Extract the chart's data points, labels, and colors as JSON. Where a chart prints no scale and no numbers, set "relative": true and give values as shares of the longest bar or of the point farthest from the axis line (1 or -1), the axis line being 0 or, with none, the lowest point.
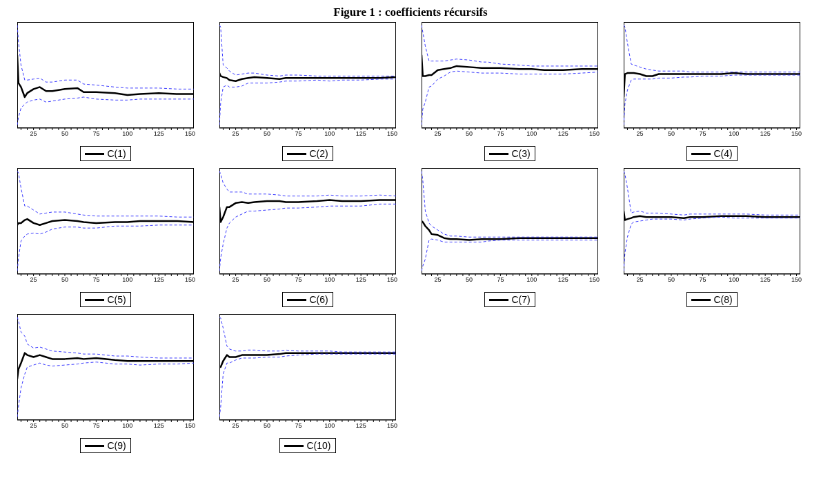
{
  "chart_data": [
    {
      "type": "line",
      "x": [
        12,
        13,
        15,
        18,
        20,
        25,
        30,
        35,
        40,
        50,
        60,
        65,
        75,
        90,
        100,
        110,
        125,
        140,
        153
      ],
      "xlim": [
        12,
        153
      ],
      "xticks": [
        {
          "value": 15,
          "label": null
        },
        {
          "value": 20,
          "label": null
        },
        25,
        {
          "value": 30,
          "label": null
        },
        {
          "value": 35,
          "label": null
        },
        {
          "value": 40,
          "label": null
        },
        {
          "value": 45,
          "label": null
        },
        50,
        {
          "value": 55,
          "label": null
        },
        {
          "value": 60,
          "label": null
        },
        {
          "value": 65,
          "label": null
        },
        {
          "value": 70,
          "label": null
        },
        75,
        {
          "value": 80,
          "label": null
        },
        {
          "value": 85,
          "label": null
        },
        {
          "value": 90,
          "label": null
        },
        {
          "value": 95,
          "label": null
        },
        100,
        {
          "value": 105,
          "label": null
        },
        {
          "value": 110,
          "label": null
        },
        {
          "value": 115,
          "label": null
        },
        {
          "value": 120,
          "label": null
        },
        125,
        {
          "value": 130,
          "label": null
        },
        {
          "value": 135,
          "label": null
        },
        {
          "value": 140,
          "label": null
        },
        {
          "value": 145,
          "label": null
        },
        150
      ],
      "relative": true,
      "legend": "bottom",
      "series": [
        {
          "name": "C(1)",
          "color": "#000000",
          "line_style": "solid",
          "values": [
            0.7,
            0.42,
            0.38,
            0.28,
            0.32,
            0.36,
            0.38,
            0.34,
            0.34,
            0.36,
            0.37,
            0.33,
            0.33,
            0.32,
            0.3,
            0.31,
            0.32,
            0.31,
            0.31
          ]
        },
        {
          "color": "#3a3aff",
          "line_style": "dashed",
          "values": [
            1.0,
            0.83,
            0.6,
            0.45,
            0.45,
            0.46,
            0.47,
            0.43,
            0.43,
            0.45,
            0.45,
            0.41,
            0.4,
            0.38,
            0.37,
            0.37,
            0.37,
            0.36,
            0.36
          ]
        },
        {
          "color": "#3a3aff",
          "line_style": "dashed",
          "values": [
            0,
            0.08,
            0.17,
            0.21,
            0.23,
            0.25,
            0.26,
            0.23,
            0.24,
            0.26,
            0.27,
            0.28,
            0.26,
            0.25,
            0.25,
            0.26,
            0.26,
            0.26,
            0.26
          ]
        }
      ]
    },
    {
      "type": "line",
      "x": [
        12,
        13,
        15,
        18,
        20,
        25,
        30,
        35,
        40,
        50,
        60,
        65,
        75,
        90,
        100,
        110,
        125,
        140,
        153
      ],
      "xlim": [
        12,
        153
      ],
      "xticks": [
        {
          "value": 15,
          "label": null
        },
        {
          "value": 20,
          "label": null
        },
        25,
        {
          "value": 30,
          "label": null
        },
        {
          "value": 35,
          "label": null
        },
        {
          "value": 40,
          "label": null
        },
        {
          "value": 45,
          "label": null
        },
        50,
        {
          "value": 55,
          "label": null
        },
        {
          "value": 60,
          "label": null
        },
        {
          "value": 65,
          "label": null
        },
        {
          "value": 70,
          "label": null
        },
        75,
        {
          "value": 80,
          "label": null
        },
        {
          "value": 85,
          "label": null
        },
        {
          "value": 90,
          "label": null
        },
        {
          "value": 95,
          "label": null
        },
        100,
        {
          "value": 105,
          "label": null
        },
        {
          "value": 110,
          "label": null
        },
        {
          "value": 115,
          "label": null
        },
        {
          "value": 120,
          "label": null
        },
        125,
        {
          "value": 130,
          "label": null
        },
        {
          "value": 135,
          "label": null
        },
        {
          "value": 140,
          "label": null
        },
        {
          "value": 145,
          "label": null
        },
        150
      ],
      "relative": true,
      "legend": "bottom",
      "series": [
        {
          "name": "C(2)",
          "color": "#000000",
          "line_style": "solid",
          "values": [
            0.52,
            0.49,
            0.48,
            0.47,
            0.45,
            0.44,
            0.46,
            0.47,
            0.48,
            0.47,
            0.46,
            0.47,
            0.47,
            0.47,
            0.47,
            0.47,
            0.47,
            0.47,
            0.48
          ]
        },
        {
          "color": "#3a3aff",
          "line_style": "dashed",
          "values": [
            1.0,
            0.98,
            0.6,
            0.57,
            0.54,
            0.5,
            0.51,
            0.52,
            0.52,
            0.5,
            0.49,
            0.5,
            0.5,
            0.49,
            0.49,
            0.49,
            0.49,
            0.49,
            0.49
          ]
        },
        {
          "color": "#3a3aff",
          "line_style": "dashed",
          "values": [
            0,
            0.22,
            0.38,
            0.4,
            0.38,
            0.38,
            0.39,
            0.42,
            0.42,
            0.42,
            0.43,
            0.44,
            0.44,
            0.45,
            0.44,
            0.45,
            0.45,
            0.46,
            0.46
          ]
        }
      ]
    },
    {
      "type": "line",
      "x": [
        12,
        13,
        15,
        18,
        20,
        25,
        30,
        35,
        40,
        50,
        60,
        65,
        75,
        90,
        100,
        110,
        125,
        140,
        153
      ],
      "xlim": [
        12,
        153
      ],
      "xticks": [
        {
          "value": 15,
          "label": null
        },
        {
          "value": 20,
          "label": null
        },
        25,
        {
          "value": 30,
          "label": null
        },
        {
          "value": 35,
          "label": null
        },
        {
          "value": 40,
          "label": null
        },
        {
          "value": 45,
          "label": null
        },
        50,
        {
          "value": 55,
          "label": null
        },
        {
          "value": 60,
          "label": null
        },
        {
          "value": 65,
          "label": null
        },
        {
          "value": 70,
          "label": null
        },
        75,
        {
          "value": 80,
          "label": null
        },
        {
          "value": 85,
          "label": null
        },
        {
          "value": 90,
          "label": null
        },
        {
          "value": 95,
          "label": null
        },
        100,
        {
          "value": 105,
          "label": null
        },
        {
          "value": 110,
          "label": null
        },
        {
          "value": 115,
          "label": null
        },
        {
          "value": 120,
          "label": null
        },
        125,
        {
          "value": 130,
          "label": null
        },
        {
          "value": 135,
          "label": null
        },
        {
          "value": 140,
          "label": null
        },
        {
          "value": 145,
          "label": null
        },
        150
      ],
      "relative": true,
      "legend": "bottom",
      "title": "Figure 1 : coefficients récursifs",
      "series": [
        {
          "name": "C(3)",
          "color": "#000000",
          "line_style": "solid",
          "values": [
            0.7,
            0.49,
            0.49,
            0.5,
            0.5,
            0.55,
            0.56,
            0.57,
            0.59,
            0.58,
            0.57,
            0.57,
            0.57,
            0.56,
            0.56,
            0.55,
            0.55,
            0.56,
            0.56
          ]
        },
        {
          "color": "#3a3aff",
          "line_style": "dashed",
          "values": [
            1.0,
            0.93,
            0.79,
            0.64,
            0.64,
            0.64,
            0.64,
            0.65,
            0.66,
            0.65,
            0.63,
            0.63,
            0.61,
            0.6,
            0.59,
            0.59,
            0.59,
            0.59,
            0.59
          ]
        },
        {
          "color": "#3a3aff",
          "line_style": "dashed",
          "values": [
            0,
            0.16,
            0.23,
            0.38,
            0.39,
            0.46,
            0.49,
            0.53,
            0.54,
            0.53,
            0.52,
            0.52,
            0.52,
            0.51,
            0.51,
            0.51,
            0.51,
            0.52,
            0.53
          ]
        }
      ]
    },
    {
      "type": "line",
      "x": [
        12,
        13,
        15,
        18,
        20,
        25,
        30,
        35,
        40,
        50,
        60,
        65,
        75,
        90,
        100,
        110,
        125,
        140,
        153
      ],
      "xlim": [
        12,
        153
      ],
      "xticks": [
        {
          "value": 15,
          "label": null
        },
        {
          "value": 20,
          "label": null
        },
        25,
        {
          "value": 30,
          "label": null
        },
        {
          "value": 35,
          "label": null
        },
        {
          "value": 40,
          "label": null
        },
        {
          "value": 45,
          "label": null
        },
        50,
        {
          "value": 55,
          "label": null
        },
        {
          "value": 60,
          "label": null
        },
        {
          "value": 65,
          "label": null
        },
        {
          "value": 70,
          "label": null
        },
        75,
        {
          "value": 80,
          "label": null
        },
        {
          "value": 85,
          "label": null
        },
        {
          "value": 90,
          "label": null
        },
        {
          "value": 95,
          "label": null
        },
        100,
        {
          "value": 105,
          "label": null
        },
        {
          "value": 110,
          "label": null
        },
        {
          "value": 115,
          "label": null
        },
        {
          "value": 120,
          "label": null
        },
        125,
        {
          "value": 130,
          "label": null
        },
        {
          "value": 135,
          "label": null
        },
        {
          "value": 140,
          "label": null
        },
        {
          "value": 145,
          "label": null
        },
        150
      ],
      "relative": true,
      "legend": "bottom",
      "series": [
        {
          "name": "C(4)",
          "color": "#000000",
          "line_style": "solid",
          "values": [
            0.28,
            0.51,
            0.52,
            0.52,
            0.52,
            0.51,
            0.49,
            0.49,
            0.51,
            0.51,
            0.51,
            0.51,
            0.51,
            0.51,
            0.52,
            0.51,
            0.51,
            0.51,
            0.51
          ]
        },
        {
          "color": "#3a3aff",
          "line_style": "dashed",
          "values": [
            1.0,
            0.98,
            0.82,
            0.61,
            0.6,
            0.58,
            0.56,
            0.55,
            0.54,
            0.54,
            0.54,
            0.53,
            0.53,
            0.53,
            0.53,
            0.53,
            0.53,
            0.53,
            0.53
          ]
        },
        {
          "color": "#3a3aff",
          "line_style": "dashed",
          "values": [
            0,
            0.21,
            0.35,
            0.45,
            0.46,
            0.46,
            0.46,
            0.46,
            0.47,
            0.47,
            0.48,
            0.48,
            0.49,
            0.49,
            0.5,
            0.5,
            0.5,
            0.5,
            0.5
          ]
        }
      ]
    },
    {
      "type": "line",
      "x": [
        12,
        13,
        15,
        18,
        20,
        25,
        30,
        35,
        40,
        50,
        60,
        65,
        75,
        90,
        100,
        110,
        125,
        140,
        153
      ],
      "xlim": [
        12,
        153
      ],
      "xticks": [
        {
          "value": 15,
          "label": null
        },
        {
          "value": 20,
          "label": null
        },
        25,
        {
          "value": 30,
          "label": null
        },
        {
          "value": 35,
          "label": null
        },
        {
          "value": 40,
          "label": null
        },
        {
          "value": 45,
          "label": null
        },
        50,
        {
          "value": 55,
          "label": null
        },
        {
          "value": 60,
          "label": null
        },
        {
          "value": 65,
          "label": null
        },
        {
          "value": 70,
          "label": null
        },
        75,
        {
          "value": 80,
          "label": null
        },
        {
          "value": 85,
          "label": null
        },
        {
          "value": 90,
          "label": null
        },
        {
          "value": 95,
          "label": null
        },
        100,
        {
          "value": 105,
          "label": null
        },
        {
          "value": 110,
          "label": null
        },
        {
          "value": 115,
          "label": null
        },
        {
          "value": 120,
          "label": null
        },
        125,
        {
          "value": 130,
          "label": null
        },
        {
          "value": 135,
          "label": null
        },
        {
          "value": 140,
          "label": null
        },
        {
          "value": 145,
          "label": null
        },
        150
      ],
      "relative": true,
      "legend": "bottom",
      "series": [
        {
          "name": "C(5)",
          "color": "#000000",
          "line_style": "solid",
          "values": [
            0.46,
            0.48,
            0.48,
            0.51,
            0.52,
            0.48,
            0.46,
            0.48,
            0.5,
            0.51,
            0.5,
            0.49,
            0.48,
            0.49,
            0.49,
            0.5,
            0.5,
            0.5,
            0.49
          ]
        },
        {
          "color": "#3a3aff",
          "line_style": "dashed",
          "values": [
            1.0,
            0.98,
            0.83,
            0.65,
            0.65,
            0.61,
            0.57,
            0.58,
            0.59,
            0.59,
            0.57,
            0.56,
            0.55,
            0.55,
            0.55,
            0.55,
            0.55,
            0.54,
            0.54
          ]
        },
        {
          "color": "#3a3aff",
          "line_style": "dashed",
          "values": [
            0,
            0.13,
            0.3,
            0.35,
            0.37,
            0.38,
            0.37,
            0.39,
            0.42,
            0.44,
            0.44,
            0.43,
            0.43,
            0.45,
            0.45,
            0.45,
            0.46,
            0.46,
            0.46
          ]
        }
      ]
    },
    {
      "type": "line",
      "x": [
        12,
        13,
        15,
        18,
        20,
        25,
        30,
        35,
        40,
        50,
        60,
        65,
        75,
        90,
        100,
        110,
        125,
        140,
        153
      ],
      "xlim": [
        12,
        153
      ],
      "xticks": [
        {
          "value": 15,
          "label": null
        },
        {
          "value": 20,
          "label": null
        },
        25,
        {
          "value": 30,
          "label": null
        },
        {
          "value": 35,
          "label": null
        },
        {
          "value": 40,
          "label": null
        },
        {
          "value": 45,
          "label": null
        },
        50,
        {
          "value": 55,
          "label": null
        },
        {
          "value": 60,
          "label": null
        },
        {
          "value": 65,
          "label": null
        },
        {
          "value": 70,
          "label": null
        },
        75,
        {
          "value": 80,
          "label": null
        },
        {
          "value": 85,
          "label": null
        },
        {
          "value": 90,
          "label": null
        },
        {
          "value": 95,
          "label": null
        },
        100,
        {
          "value": 105,
          "label": null
        },
        {
          "value": 110,
          "label": null
        },
        {
          "value": 115,
          "label": null
        },
        {
          "value": 120,
          "label": null
        },
        125,
        {
          "value": 130,
          "label": null
        },
        {
          "value": 135,
          "label": null
        },
        {
          "value": 140,
          "label": null
        },
        {
          "value": 145,
          "label": null
        },
        150
      ],
      "relative": true,
      "legend": "bottom",
      "series": [
        {
          "name": "C(6)",
          "color": "#000000",
          "line_style": "solid",
          "values": [
            0.64,
            0.49,
            0.54,
            0.64,
            0.64,
            0.68,
            0.69,
            0.68,
            0.69,
            0.7,
            0.7,
            0.69,
            0.69,
            0.7,
            0.71,
            0.7,
            0.7,
            0.71,
            0.71
          ]
        },
        {
          "color": "#3a3aff",
          "line_style": "dashed",
          "values": [
            1.0,
            0.97,
            0.88,
            0.82,
            0.79,
            0.79,
            0.79,
            0.77,
            0.77,
            0.77,
            0.76,
            0.75,
            0.75,
            0.75,
            0.76,
            0.75,
            0.75,
            0.76,
            0.75
          ]
        },
        {
          "color": "#3a3aff",
          "line_style": "dashed",
          "values": [
            0,
            0.13,
            0.27,
            0.43,
            0.48,
            0.54,
            0.57,
            0.6,
            0.6,
            0.61,
            0.62,
            0.63,
            0.63,
            0.64,
            0.65,
            0.65,
            0.65,
            0.67,
            0.67
          ]
        }
      ]
    },
    {
      "type": "line",
      "x": [
        12,
        13,
        15,
        18,
        20,
        25,
        30,
        35,
        40,
        50,
        60,
        65,
        75,
        90,
        100,
        110,
        125,
        140,
        153
      ],
      "xlim": [
        12,
        153
      ],
      "xticks": [
        {
          "value": 15,
          "label": null
        },
        {
          "value": 20,
          "label": null
        },
        25,
        {
          "value": 30,
          "label": null
        },
        {
          "value": 35,
          "label": null
        },
        {
          "value": 40,
          "label": null
        },
        {
          "value": 45,
          "label": null
        },
        50,
        {
          "value": 55,
          "label": null
        },
        {
          "value": 60,
          "label": null
        },
        {
          "value": 65,
          "label": null
        },
        {
          "value": 70,
          "label": null
        },
        75,
        {
          "value": 80,
          "label": null
        },
        {
          "value": 85,
          "label": null
        },
        {
          "value": 90,
          "label": null
        },
        {
          "value": 95,
          "label": null
        },
        100,
        {
          "value": 105,
          "label": null
        },
        {
          "value": 110,
          "label": null
        },
        {
          "value": 115,
          "label": null
        },
        {
          "value": 120,
          "label": null
        },
        125,
        {
          "value": 130,
          "label": null
        },
        {
          "value": 135,
          "label": null
        },
        {
          "value": 140,
          "label": null
        },
        {
          "value": 145,
          "label": null
        },
        150
      ],
      "relative": true,
      "legend": "bottom",
      "series": [
        {
          "name": "C(7)",
          "color": "#000000",
          "line_style": "solid",
          "values": [
            0.5,
            0.49,
            0.45,
            0.41,
            0.37,
            0.36,
            0.33,
            0.32,
            0.32,
            0.31,
            0.32,
            0.32,
            0.32,
            0.33,
            0.33,
            0.33,
            0.33,
            0.33,
            0.33
          ]
        },
        {
          "color": "#3a3aff",
          "line_style": "dashed",
          "values": [
            1.0,
            0.91,
            0.6,
            0.48,
            0.45,
            0.41,
            0.37,
            0.35,
            0.35,
            0.34,
            0.34,
            0.34,
            0.34,
            0.34,
            0.34,
            0.34,
            0.34,
            0.34,
            0.34
          ]
        },
        {
          "color": "#3a3aff",
          "line_style": "dashed",
          "values": [
            0,
            0.05,
            0.12,
            0.31,
            0.32,
            0.31,
            0.29,
            0.29,
            0.29,
            0.29,
            0.29,
            0.3,
            0.31,
            0.31,
            0.31,
            0.31,
            0.31,
            0.31,
            0.31
          ]
        }
      ]
    },
    {
      "type": "line",
      "x": [
        12,
        13,
        15,
        18,
        20,
        25,
        30,
        35,
        40,
        50,
        60,
        65,
        75,
        90,
        100,
        110,
        125,
        140,
        153
      ],
      "xlim": [
        12,
        153
      ],
      "xticks": [
        {
          "value": 15,
          "label": null
        },
        {
          "value": 20,
          "label": null
        },
        25,
        {
          "value": 30,
          "label": null
        },
        {
          "value": 35,
          "label": null
        },
        {
          "value": 40,
          "label": null
        },
        {
          "value": 45,
          "label": null
        },
        50,
        {
          "value": 55,
          "label": null
        },
        {
          "value": 60,
          "label": null
        },
        {
          "value": 65,
          "label": null
        },
        {
          "value": 70,
          "label": null
        },
        75,
        {
          "value": 80,
          "label": null
        },
        {
          "value": 85,
          "label": null
        },
        {
          "value": 90,
          "label": null
        },
        {
          "value": 95,
          "label": null
        },
        100,
        {
          "value": 105,
          "label": null
        },
        {
          "value": 110,
          "label": null
        },
        {
          "value": 115,
          "label": null
        },
        {
          "value": 120,
          "label": null
        },
        125,
        {
          "value": 130,
          "label": null
        },
        {
          "value": 135,
          "label": null
        },
        {
          "value": 140,
          "label": null
        },
        {
          "value": 145,
          "label": null
        },
        150
      ],
      "relative": true,
      "legend": "bottom",
      "series": [
        {
          "name": "C(8)",
          "color": "#000000",
          "line_style": "solid",
          "values": [
            0.6,
            0.51,
            0.52,
            0.53,
            0.54,
            0.55,
            0.54,
            0.54,
            0.54,
            0.54,
            0.53,
            0.54,
            0.54,
            0.55,
            0.55,
            0.55,
            0.54,
            0.54,
            0.54
          ]
        },
        {
          "color": "#3a3aff",
          "line_style": "dashed",
          "values": [
            1.0,
            0.97,
            0.83,
            0.58,
            0.59,
            0.6,
            0.58,
            0.58,
            0.58,
            0.57,
            0.56,
            0.57,
            0.57,
            0.57,
            0.57,
            0.57,
            0.56,
            0.56,
            0.56
          ]
        },
        {
          "color": "#3a3aff",
          "line_style": "dashed",
          "values": [
            0,
            0.18,
            0.34,
            0.47,
            0.49,
            0.5,
            0.51,
            0.52,
            0.52,
            0.52,
            0.51,
            0.52,
            0.53,
            0.54,
            0.53,
            0.53,
            0.53,
            0.53,
            0.53
          ]
        }
      ]
    },
    {
      "type": "line",
      "x": [
        12,
        13,
        15,
        18,
        20,
        25,
        30,
        35,
        40,
        50,
        60,
        65,
        75,
        90,
        100,
        110,
        125,
        140,
        153
      ],
      "xlim": [
        12,
        153
      ],
      "xticks": [
        {
          "value": 15,
          "label": null
        },
        {
          "value": 20,
          "label": null
        },
        25,
        {
          "value": 30,
          "label": null
        },
        {
          "value": 35,
          "label": null
        },
        {
          "value": 40,
          "label": null
        },
        {
          "value": 45,
          "label": null
        },
        50,
        {
          "value": 55,
          "label": null
        },
        {
          "value": 60,
          "label": null
        },
        {
          "value": 65,
          "label": null
        },
        {
          "value": 70,
          "label": null
        },
        75,
        {
          "value": 80,
          "label": null
        },
        {
          "value": 85,
          "label": null
        },
        {
          "value": 90,
          "label": null
        },
        {
          "value": 95,
          "label": null
        },
        100,
        {
          "value": 105,
          "label": null
        },
        {
          "value": 110,
          "label": null
        },
        {
          "value": 115,
          "label": null
        },
        {
          "value": 120,
          "label": null
        },
        125,
        {
          "value": 130,
          "label": null
        },
        {
          "value": 135,
          "label": null
        },
        {
          "value": 140,
          "label": null
        },
        {
          "value": 145,
          "label": null
        },
        150
      ],
      "relative": true,
      "legend": "bottom",
      "series": [
        {
          "name": "C(9)",
          "color": "#000000",
          "line_style": "solid",
          "values": [
            0.38,
            0.48,
            0.54,
            0.64,
            0.62,
            0.6,
            0.62,
            0.6,
            0.58,
            0.58,
            0.59,
            0.58,
            0.59,
            0.57,
            0.56,
            0.56,
            0.56,
            0.56,
            0.56
          ]
        },
        {
          "color": "#3a3aff",
          "line_style": "dashed",
          "values": [
            1.0,
            0.96,
            0.85,
            0.81,
            0.73,
            0.69,
            0.7,
            0.68,
            0.66,
            0.65,
            0.64,
            0.63,
            0.63,
            0.61,
            0.61,
            0.6,
            0.59,
            0.59,
            0.59
          ]
        },
        {
          "color": "#3a3aff",
          "line_style": "dashed",
          "values": [
            0,
            0.11,
            0.29,
            0.43,
            0.5,
            0.52,
            0.54,
            0.52,
            0.51,
            0.52,
            0.53,
            0.54,
            0.55,
            0.53,
            0.53,
            0.52,
            0.53,
            0.53,
            0.54
          ]
        }
      ]
    },
    {
      "type": "line",
      "x": [
        12,
        13,
        15,
        18,
        20,
        25,
        30,
        35,
        40,
        50,
        60,
        65,
        75,
        90,
        100,
        110,
        125,
        140,
        153
      ],
      "xlim": [
        12,
        153
      ],
      "xticks": [
        {
          "value": 15,
          "label": null
        },
        {
          "value": 20,
          "label": null
        },
        25,
        {
          "value": 30,
          "label": null
        },
        {
          "value": 35,
          "label": null
        },
        {
          "value": 40,
          "label": null
        },
        {
          "value": 45,
          "label": null
        },
        50,
        {
          "value": 55,
          "label": null
        },
        {
          "value": 60,
          "label": null
        },
        {
          "value": 65,
          "label": null
        },
        {
          "value": 70,
          "label": null
        },
        75,
        {
          "value": 80,
          "label": null
        },
        {
          "value": 85,
          "label": null
        },
        {
          "value": 90,
          "label": null
        },
        {
          "value": 95,
          "label": null
        },
        100,
        {
          "value": 105,
          "label": null
        },
        {
          "value": 110,
          "label": null
        },
        {
          "value": 115,
          "label": null
        },
        {
          "value": 120,
          "label": null
        },
        125,
        {
          "value": 130,
          "label": null
        },
        {
          "value": 135,
          "label": null
        },
        {
          "value": 140,
          "label": null
        },
        {
          "value": 145,
          "label": null
        },
        150
      ],
      "relative": true,
      "legend": "bottom",
      "series": [
        {
          "name": "C(10)",
          "color": "#000000",
          "line_style": "solid",
          "values": [
            0.5,
            0.5,
            0.56,
            0.62,
            0.6,
            0.6,
            0.62,
            0.62,
            0.62,
            0.62,
            0.63,
            0.64,
            0.64,
            0.64,
            0.64,
            0.64,
            0.64,
            0.64,
            0.64
          ]
        },
        {
          "color": "#3a3aff",
          "line_style": "dashed",
          "values": [
            1.0,
            0.99,
            0.89,
            0.71,
            0.68,
            0.66,
            0.66,
            0.67,
            0.67,
            0.66,
            0.66,
            0.67,
            0.66,
            0.66,
            0.66,
            0.65,
            0.65,
            0.65,
            0.65
          ]
        },
        {
          "color": "#3a3aff",
          "line_style": "dashed",
          "values": [
            0,
            0.1,
            0.43,
            0.54,
            0.54,
            0.57,
            0.59,
            0.59,
            0.59,
            0.6,
            0.6,
            0.61,
            0.62,
            0.63,
            0.63,
            0.63,
            0.63,
            0.63,
            0.63
          ]
        }
      ]
    }
  ]
}
